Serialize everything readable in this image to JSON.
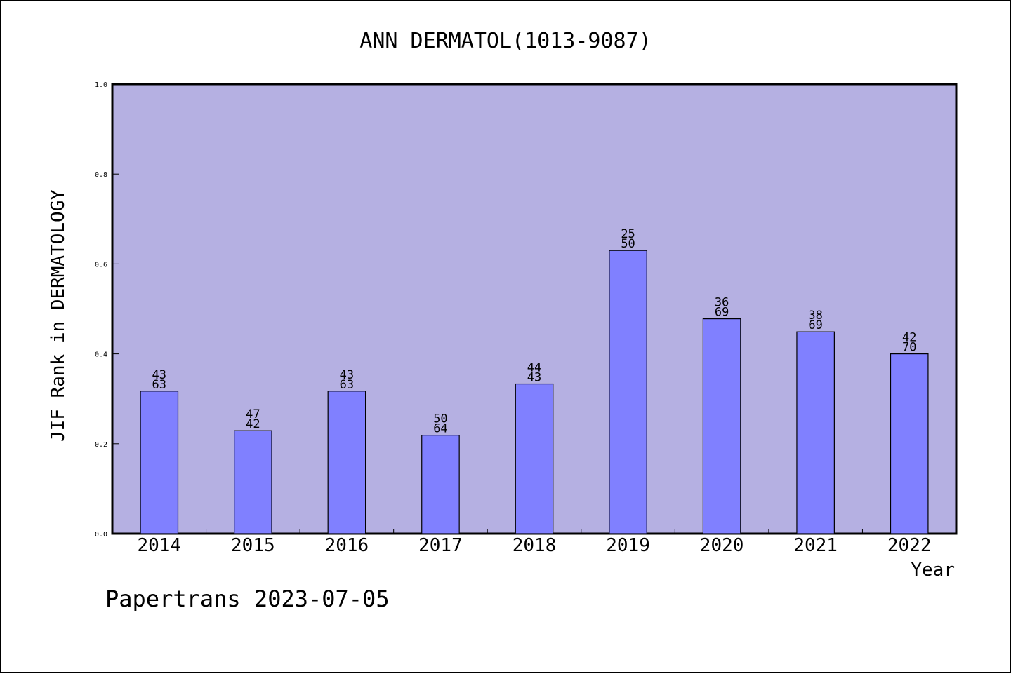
{
  "chart_data": {
    "type": "bar",
    "title": "ANN DERMATOL(1013-9087)",
    "xlabel": "Year",
    "ylabel": "JIF Rank in DERMATOLOGY",
    "ylim": [
      0,
      1.0
    ],
    "y_ticks": [
      "0.0",
      "0.2",
      "0.4",
      "0.6",
      "0.8",
      "1.0"
    ],
    "categories": [
      "2014",
      "2015",
      "2016",
      "2017",
      "2018",
      "2019",
      "2020",
      "2021",
      "2022"
    ],
    "values": [
      0.317,
      0.229,
      0.317,
      0.219,
      0.333,
      0.63,
      0.478,
      0.449,
      0.4
    ],
    "labels_top": [
      "43",
      "47",
      "43",
      "50",
      "44",
      "25",
      "36",
      "38",
      "42"
    ],
    "labels_bottom": [
      "63",
      "42",
      "63",
      "64",
      "43",
      "50",
      "69",
      "69",
      "70"
    ],
    "grid": false,
    "legend": "none",
    "colors": {
      "plot_background": "#b5b0e2",
      "bar_fill": "#8080ff",
      "bar_stroke": "#000000"
    }
  },
  "footer": {
    "text": "Papertrans 2023-07-05"
  }
}
